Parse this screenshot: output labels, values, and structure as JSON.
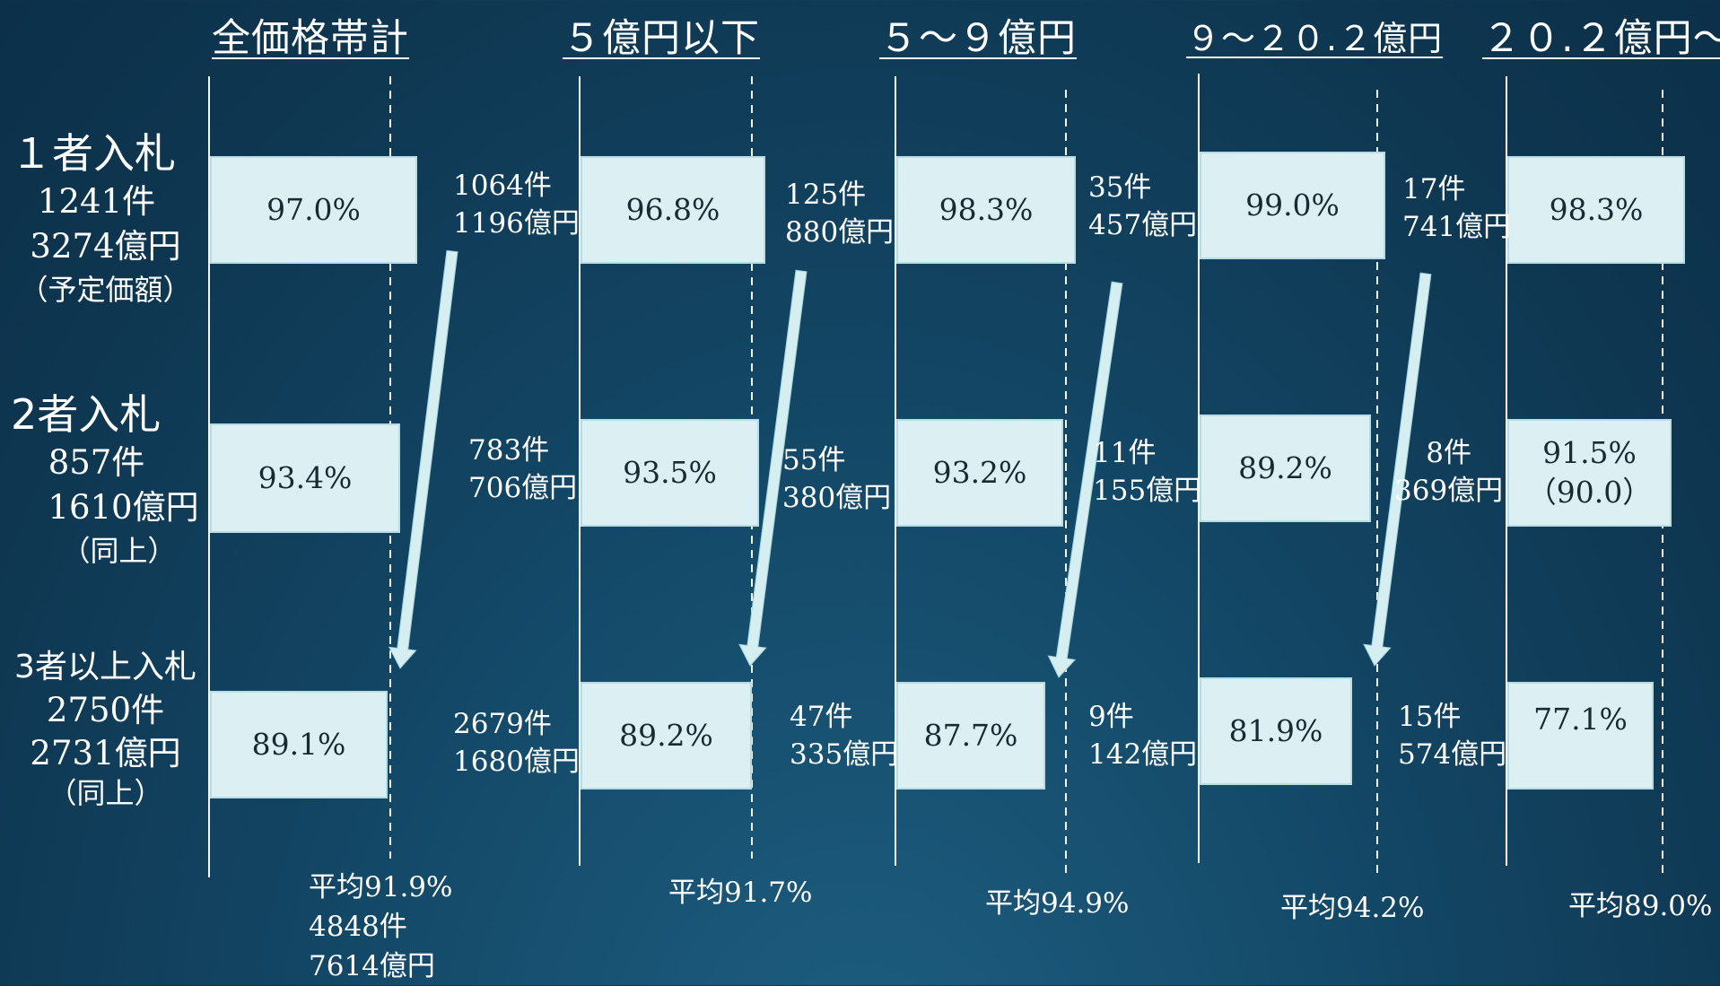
{
  "chart_data": {
    "type": "bar",
    "columns": [
      {
        "header": "全価格帯計",
        "values": [
          "97.0%",
          "93.4%",
          "89.1%"
        ],
        "avg": "平均91.9%",
        "total_count": "4848件",
        "total_amount": "7614億円"
      },
      {
        "header": "５億円以下",
        "values": [
          "96.8%",
          "93.5%",
          "89.2%"
        ],
        "avg": "平均91.7%"
      },
      {
        "header": "５～９億円",
        "values": [
          "98.3%",
          "93.2%",
          "87.7%"
        ],
        "avg": "平均94.9%"
      },
      {
        "header": "９～２０.２億円",
        "values": [
          "99.0%",
          "89.2%",
          "81.9%"
        ],
        "avg": "平均94.2%"
      },
      {
        "header": "２０.２億円～",
        "values": [
          "98.3%",
          "91.5%",
          "77.1%"
        ],
        "extra": "（90.0）",
        "avg": "平均89.0%"
      }
    ],
    "values_numeric": [
      [
        97.0,
        93.4,
        89.1
      ],
      [
        96.8,
        93.5,
        89.2
      ],
      [
        98.3,
        93.2,
        87.7
      ],
      [
        99.0,
        89.2,
        81.9
      ],
      [
        98.3,
        91.5,
        77.1
      ]
    ],
    "averages_numeric": [
      91.9,
      91.7,
      94.9,
      94.2,
      89.0
    ],
    "rows": [
      {
        "label": "１者入札",
        "count": "1241件",
        "amount": "3274億円",
        "note": "（予定価額）"
      },
      {
        "label": "2者入札",
        "count": "857件",
        "amount": "1610億円",
        "note": "（同上）"
      },
      {
        "label": "3者以上入札",
        "count": "2750件",
        "amount": "2731億円",
        "note": "（同上）"
      }
    ],
    "gaps": [
      [
        [
          "1064件",
          "1196億円"
        ],
        [
          "783件",
          "706億円"
        ],
        [
          "2679件",
          "1680億円"
        ]
      ],
      [
        [
          "125件",
          "880億円"
        ],
        [
          "55件",
          "380億円"
        ],
        [
          "47件",
          "335億円"
        ]
      ],
      [
        [
          "35件",
          "457億円"
        ],
        [
          "11件",
          "155億円"
        ],
        [
          "9件",
          "142億円"
        ]
      ],
      [
        [
          "17件",
          "741億円"
        ],
        [
          "8件",
          "369億円"
        ],
        [
          "15件",
          "574億円"
        ]
      ]
    ]
  },
  "colors": {
    "box_fill": "#dcf0f3",
    "box_border": "#b6dde4",
    "arrow": "#d4eef2",
    "text": "#ffffff",
    "box_text": "#1a2a33"
  }
}
